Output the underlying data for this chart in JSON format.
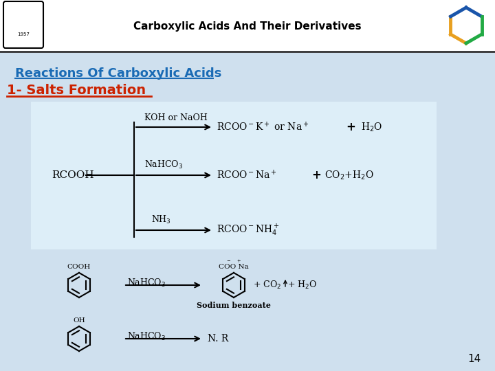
{
  "title": "Carboxylic Acids And Their Derivatives",
  "subtitle": "Reactions Of Carboxylic Acids",
  "section": "1- Salts Formation",
  "bg_color": "#cfe0ee",
  "slide_bg": "#ffffff",
  "title_color": "#000000",
  "subtitle_color": "#1a6bb5",
  "section_color": "#cc2200",
  "page_number": "14",
  "header_line_color": "#333333",
  "box_bg": "#ddeef8",
  "box_edge": "#aaccdd"
}
